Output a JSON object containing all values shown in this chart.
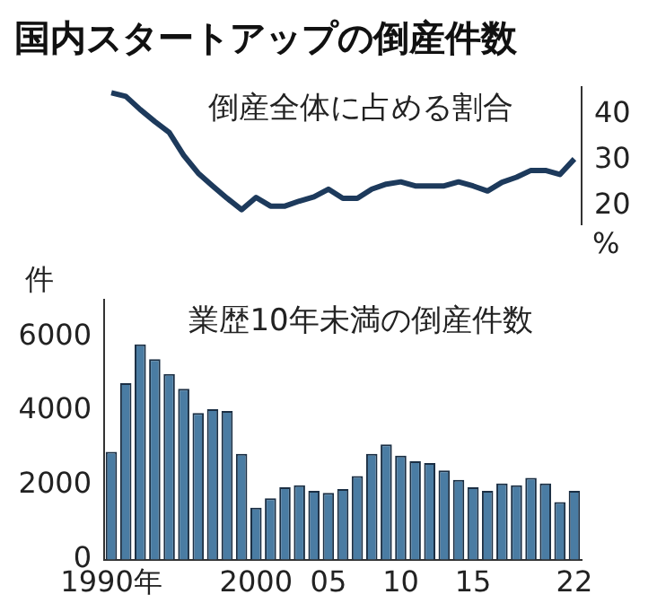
{
  "chart_data": [
    {
      "type": "line",
      "title": "国内スタートアップの倒産件数",
      "annotations": [
        "倒産全体に占める割合"
      ],
      "ylabel": "%",
      "categories": [
        null,
        null,
        null,
        null,
        null,
        null,
        null,
        null,
        null,
        null,
        null,
        null,
        null,
        null,
        null,
        null,
        null,
        null,
        null,
        null,
        null,
        null,
        null,
        null,
        null,
        null,
        null,
        null,
        null,
        null,
        null,
        null,
        null
      ],
      "values": [
        44.8,
        44,
        41.1,
        38.5,
        36.1,
        31.1,
        27.2,
        24.4,
        21.7,
        19.2,
        21.9,
        20,
        20,
        21.1,
        22,
        23.7,
        21.7,
        21.7,
        23.7,
        24.8,
        25.3,
        24.4,
        24.4,
        24.4,
        25.3,
        24.4,
        23.3,
        25.2,
        26.3,
        27.8,
        27.8,
        26.9,
        30.3
      ],
      "color": "#1d3a5c",
      "ylim": [
        16,
        46
      ],
      "yticks": [
        20,
        30,
        40
      ],
      "tick_labels": "y",
      "grid": false,
      "legend": false,
      "marker": "none"
    },
    {
      "type": "bar",
      "annotations": [
        "業歴10年未満の倒産件数"
      ],
      "ylabel": "件",
      "categories": [
        "1990年",
        null,
        null,
        null,
        null,
        null,
        null,
        null,
        null,
        null,
        "2000",
        null,
        null,
        null,
        null,
        "05",
        null,
        null,
        null,
        null,
        "10",
        null,
        null,
        null,
        null,
        "15",
        null,
        null,
        null,
        null,
        null,
        null,
        "22"
      ],
      "values": [
        2900,
        4750,
        5800,
        5400,
        5000,
        4600,
        3950,
        4050,
        4000,
        2850,
        1400,
        1650,
        1950,
        2000,
        1850,
        1800,
        1900,
        2250,
        2850,
        3100,
        2800,
        2650,
        2600,
        2400,
        2150,
        1950,
        1850,
        2050,
        2000,
        2200,
        2050,
        1550,
        1850
      ],
      "color": "#4a7ca3",
      "ylim": [
        0,
        7000
      ],
      "yticks": [
        0,
        2000,
        4000,
        6000
      ],
      "grid": false,
      "legend": false
    }
  ]
}
